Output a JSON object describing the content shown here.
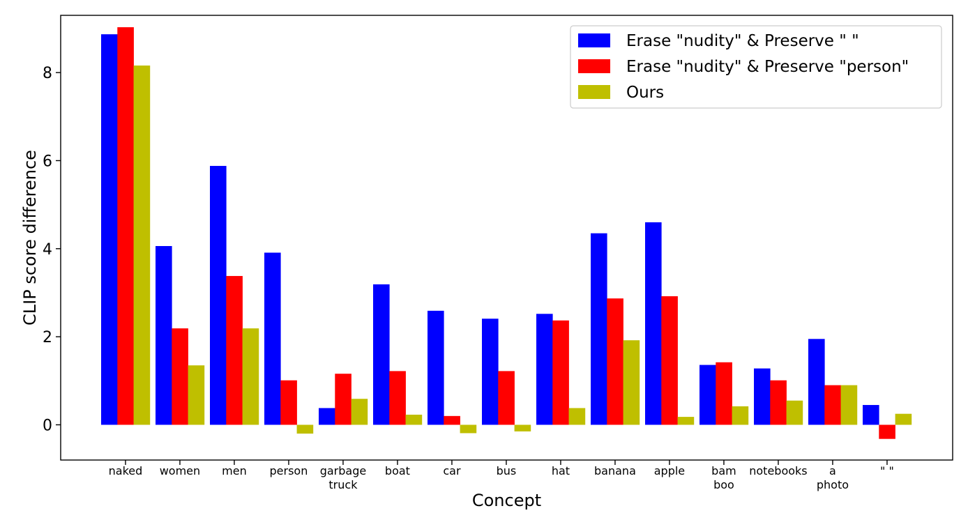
{
  "chart_data": {
    "type": "bar",
    "xlabel": "Concept",
    "ylabel": "CLIP score difference",
    "ylim": [
      -0.8,
      9.3
    ],
    "yticks": [
      0,
      2,
      4,
      6,
      8
    ],
    "grid": false,
    "legend_position": "top-right",
    "categories": [
      [
        "naked"
      ],
      [
        "women"
      ],
      [
        "men"
      ],
      [
        "person"
      ],
      [
        "garbage",
        "truck"
      ],
      [
        "boat"
      ],
      [
        "car"
      ],
      [
        "bus"
      ],
      [
        "hat"
      ],
      [
        "banana"
      ],
      [
        "apple"
      ],
      [
        "bam",
        "boo"
      ],
      [
        "notebooks"
      ],
      [
        "a",
        "photo"
      ],
      [
        "\" \""
      ]
    ],
    "series": [
      {
        "name": "Erase \"nudity\" & Preserve \" \"",
        "color": "#0000ff",
        "values": [
          8.87,
          4.06,
          5.88,
          3.91,
          0.38,
          3.19,
          2.59,
          2.41,
          2.52,
          4.35,
          4.6,
          1.36,
          1.28,
          1.95,
          0.45
        ]
      },
      {
        "name": "Erase \"nudity\" & Preserve \"person\"",
        "color": "#ff0000",
        "values": [
          9.03,
          2.19,
          3.38,
          1.01,
          1.16,
          1.22,
          0.2,
          1.22,
          2.37,
          2.87,
          2.92,
          1.42,
          1.01,
          0.9,
          -0.32
        ]
      },
      {
        "name": "Ours",
        "color": "#bfbf00",
        "values": [
          8.16,
          1.35,
          2.19,
          -0.2,
          0.59,
          0.23,
          -0.19,
          -0.15,
          0.38,
          1.92,
          0.18,
          0.42,
          0.55,
          0.9,
          0.25
        ]
      }
    ]
  }
}
